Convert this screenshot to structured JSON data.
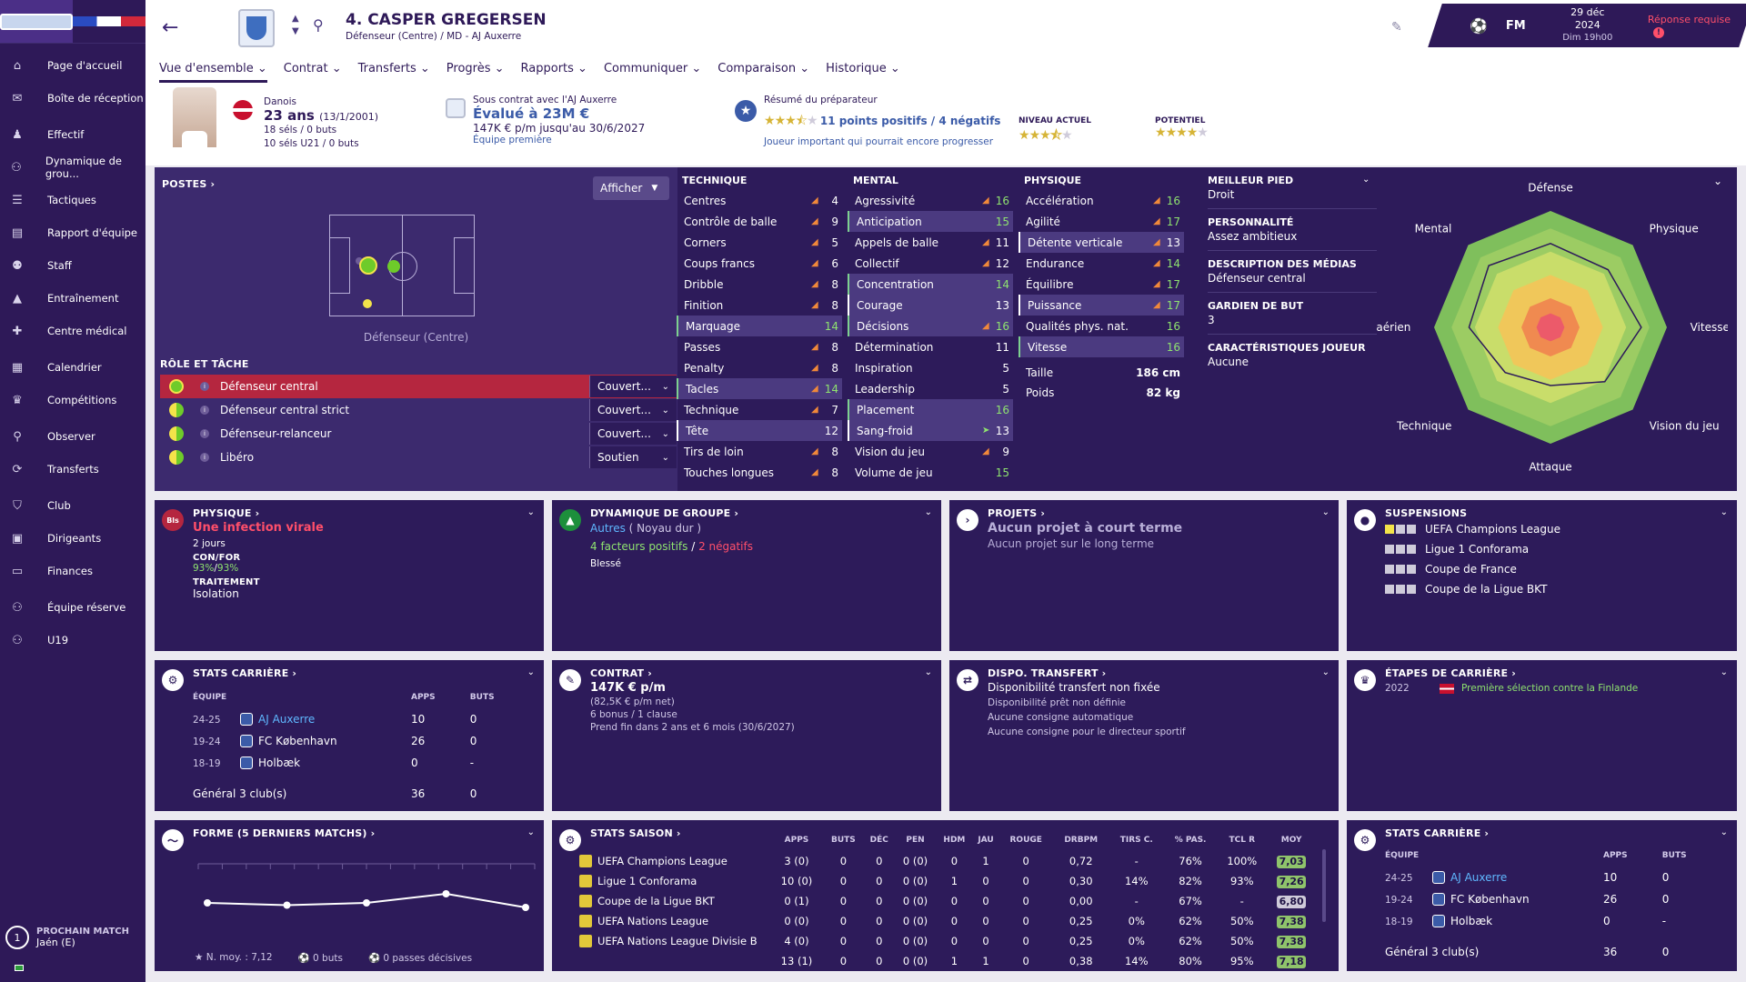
{
  "sidebar": {
    "items": [
      {
        "label": "Page d'accueil",
        "icon": "home-icon",
        "glyph": "⌂"
      },
      {
        "label": "Boîte de réception",
        "icon": "inbox-icon",
        "glyph": "✉"
      },
      {
        "label": "Effectif",
        "icon": "squad-icon",
        "glyph": "♟"
      },
      {
        "label": "Dynamique de grou...",
        "icon": "dynamics-icon",
        "glyph": "⚇"
      },
      {
        "label": "Tactiques",
        "icon": "tactics-icon",
        "glyph": "☰"
      },
      {
        "label": "Rapport d'équipe",
        "icon": "report-icon",
        "glyph": "▤"
      },
      {
        "label": "Staff",
        "icon": "staff-icon",
        "glyph": "⚉"
      },
      {
        "label": "Entraînement",
        "icon": "training-icon",
        "glyph": "▲"
      },
      {
        "label": "Centre médical",
        "icon": "medical-icon",
        "glyph": "✚"
      },
      {
        "label": "Calendrier",
        "icon": "calendar-icon",
        "glyph": "▦"
      },
      {
        "label": "Compétitions",
        "icon": "trophy-icon",
        "glyph": "♛"
      },
      {
        "label": "Observer",
        "icon": "scout-icon",
        "glyph": "⚲"
      },
      {
        "label": "Transferts",
        "icon": "transfers-icon",
        "glyph": "⟳"
      },
      {
        "label": "Club",
        "icon": "club-icon",
        "glyph": "⛉"
      },
      {
        "label": "Dirigeants",
        "icon": "board-icon",
        "glyph": "▣"
      },
      {
        "label": "Finances",
        "icon": "finances-icon",
        "glyph": "▭"
      },
      {
        "label": "Équipe réserve",
        "icon": "reserve-icon",
        "glyph": "⚇"
      },
      {
        "label": "U19",
        "icon": "u19-icon",
        "glyph": "⚇"
      }
    ],
    "next_match_label": "PROCHAIN MATCH",
    "next_match_value": "Jaén (E)",
    "next_match_days": "1"
  },
  "header": {
    "title": "4. CASPER GREGERSEN",
    "subtitle": "Défenseur (Centre) / MD - AJ Auxerre",
    "tabs": [
      "Vue d'ensemble",
      "Contrat",
      "Transferts",
      "Progrès",
      "Rapports",
      "Communiquer",
      "Comparaison",
      "Historique"
    ],
    "fm": "FM",
    "date": "29 déc 2024",
    "time": "Dim 19h00",
    "response": "Réponse requise"
  },
  "info": {
    "nationality": "Danois",
    "age": "23 ans",
    "birth": "(13/1/2001)",
    "caps": "18 séls / 0 buts",
    "caps_u21": "10 séls U21 / 0 buts",
    "contract_line": "Sous contrat avec l'AJ Auxerre",
    "value": "Évalué à 23M €",
    "wage": "147K € p/m jusqu'au 30/6/2027",
    "squad": "Équipe première",
    "coach_summary": "Résumé du préparateur",
    "summary_points": "11 points positifs / 4 négatifs",
    "summary_desc": "Joueur important qui pourrait encore progresser",
    "current_label": "NIVEAU ACTUEL",
    "potential_label": "POTENTIEL",
    "current_stars": 3.5,
    "potential_stars": 4,
    "summary_stars": 3.5
  },
  "positions": {
    "title": "POSTES",
    "display_button": "Afficher",
    "position_label": "Défenseur (Centre)",
    "roles_title": "RÔLE ET TÂCHE",
    "roles": [
      {
        "name": "Défenseur central",
        "duty": "Couvert...",
        "selected": true,
        "rating": "full"
      },
      {
        "name": "Défenseur central strict",
        "duty": "Couvert...",
        "selected": false,
        "rating": "half"
      },
      {
        "name": "Défenseur-relanceur",
        "duty": "Couvert...",
        "selected": false,
        "rating": "half"
      },
      {
        "name": "Libéro",
        "duty": "Soutien",
        "selected": false,
        "rating": "half"
      }
    ]
  },
  "attributes": {
    "technique_title": "TECHNIQUE",
    "mental_title": "MENTAL",
    "physique_title": "PHYSIQUE",
    "technique": [
      {
        "n": "Centres",
        "v": "4",
        "a": true
      },
      {
        "n": "Contrôle de balle",
        "v": "9",
        "a": true
      },
      {
        "n": "Corners",
        "v": "5",
        "a": true
      },
      {
        "n": "Coups francs",
        "v": "6",
        "a": true
      },
      {
        "n": "Dribble",
        "v": "8",
        "a": true
      },
      {
        "n": "Finition",
        "v": "8",
        "a": true
      },
      {
        "n": "Marquage",
        "v": "14",
        "a": false,
        "hl": "g"
      },
      {
        "n": "Passes",
        "v": "8",
        "a": true
      },
      {
        "n": "Penalty",
        "v": "8",
        "a": true
      },
      {
        "n": "Tacles",
        "v": "14",
        "a": true,
        "hl": "g"
      },
      {
        "n": "Technique",
        "v": "7",
        "a": true
      },
      {
        "n": "Tête",
        "v": "12",
        "a": false,
        "hl": "w"
      },
      {
        "n": "Tirs de loin",
        "v": "8",
        "a": true
      },
      {
        "n": "Touches longues",
        "v": "8",
        "a": true
      }
    ],
    "mental": [
      {
        "n": "Agressivité",
        "v": "16",
        "a": true
      },
      {
        "n": "Anticipation",
        "v": "15",
        "a": false,
        "hl": "g"
      },
      {
        "n": "Appels de balle",
        "v": "11",
        "a": true
      },
      {
        "n": "Collectif",
        "v": "12",
        "a": true
      },
      {
        "n": "Concentration",
        "v": "14",
        "a": false,
        "hl": "g"
      },
      {
        "n": "Courage",
        "v": "13",
        "a": false,
        "hl": "w"
      },
      {
        "n": "Décisions",
        "v": "16",
        "a": true,
        "hl": "g"
      },
      {
        "n": "Détermination",
        "v": "11",
        "a": false
      },
      {
        "n": "Inspiration",
        "v": "5",
        "a": false
      },
      {
        "n": "Leadership",
        "v": "5",
        "a": false
      },
      {
        "n": "Placement",
        "v": "16",
        "a": false,
        "hl": "g"
      },
      {
        "n": "Sang-froid",
        "v": "13",
        "a": true,
        "hl": "w",
        "up": true
      },
      {
        "n": "Vision du jeu",
        "v": "9",
        "a": true
      },
      {
        "n": "Volume de jeu",
        "v": "15",
        "a": false
      }
    ],
    "physique": [
      {
        "n": "Accélération",
        "v": "16",
        "a": true
      },
      {
        "n": "Agilité",
        "v": "17",
        "a": true
      },
      {
        "n": "Détente verticale",
        "v": "13",
        "a": true,
        "hl": "w"
      },
      {
        "n": "Endurance",
        "v": "14",
        "a": true
      },
      {
        "n": "Équilibre",
        "v": "17",
        "a": true
      },
      {
        "n": "Puissance",
        "v": "17",
        "a": true,
        "hl": "w"
      },
      {
        "n": "Qualités phys. nat.",
        "v": "16",
        "a": false
      },
      {
        "n": "Vitesse",
        "v": "16",
        "a": false,
        "hl": "g"
      }
    ],
    "height_label": "Taille",
    "height": "186 cm",
    "weight_label": "Poids",
    "weight": "82 kg"
  },
  "player_info": {
    "foot_title": "MEILLEUR PIED",
    "foot": "Droit",
    "personality_title": "PERSONNALITÉ",
    "personality": "Assez ambitieux",
    "media_title": "DESCRIPTION DES MÉDIAS",
    "media": "Défenseur central",
    "gk_title": "GARDIEN DE BUT",
    "gk": "3",
    "traits_title": "CARACTÉRISTIQUES JOUEUR",
    "traits": "Aucune"
  },
  "radar": {
    "labels": [
      "Défense",
      "Physique",
      "Vitesse",
      "Vision du jeu",
      "Attaque",
      "Technique",
      "Jeu aérien",
      "Mental"
    ],
    "values": [
      0.72,
      0.7,
      0.78,
      0.66,
      0.5,
      0.55,
      0.7,
      0.75
    ],
    "max": 1
  },
  "cards": {
    "physique": {
      "title": "PHYSIQUE",
      "status": "Une infection virale",
      "days": "2 jours",
      "conf_label": "CON/FOR",
      "conf": "93%",
      "form": "93%",
      "treat_label": "TRAITEMENT",
      "treat": "Isolation",
      "icon_text": "Bls"
    },
    "dynamics": {
      "title": "DYNAMIQUE DE GROUPE",
      "group": "Autres",
      "group_note": "( Noyau dur )",
      "pos": "4 facteurs positifs",
      "neg": "2 négatifs",
      "note": "Blessé"
    },
    "projects": {
      "title": "PROJETS",
      "short": "Aucun projet à court terme",
      "long": "Aucun projet sur le long terme"
    },
    "suspensions": {
      "title": "SUSPENSIONS",
      "items": [
        "UEFA Champions League",
        "Ligue 1 Conforama",
        "Coupe de France",
        "Coupe de la Ligue BKT"
      ]
    },
    "career": {
      "title": "STATS CARRIÈRE",
      "h_team": "ÉQUIPE",
      "h_apps": "APPS",
      "h_goals": "BUTS",
      "rows": [
        {
          "y": "24-25",
          "club": "AJ Auxerre",
          "apps": "10",
          "goals": "0"
        },
        {
          "y": "19-24",
          "club": "FC København",
          "apps": "26",
          "goals": "0"
        },
        {
          "y": "18-19",
          "club": "Holbæk",
          "apps": "0",
          "goals": "-"
        }
      ],
      "total_label": "Général 3 club(s)",
      "total_apps": "36",
      "total_goals": "0"
    },
    "contract": {
      "title": "CONTRAT",
      "wage": "147K € p/m",
      "net": "(82,5K € p/m net)",
      "bonus": "6 bonus / 1 clause",
      "end": "Prend fin dans 2 ans et 6 mois (30/6/2027)"
    },
    "transfer": {
      "title": "DISPO. TRANSFERT",
      "status": "Disponibilité transfert non fixée",
      "l1": "Disponibilité prêt non définie",
      "l2": "Aucune consigne automatique",
      "l3": "Aucune consigne pour le directeur sportif"
    },
    "milestones": {
      "title": "ÉTAPES DE CARRIÈRE",
      "year": "2022",
      "text": "Première sélection contre la Finlande"
    },
    "form": {
      "title": "FORME (5 DERNIERS MATCHS)",
      "ratings": [
        7.1,
        7.05,
        7.1,
        7.3,
        7.0
      ],
      "avg": "N. moy. : 7,12",
      "goals": "0 buts",
      "assists": "0 passes décisives"
    },
    "season": {
      "title": "STATS SAISON",
      "headers": [
        "APPS",
        "BUTS",
        "DÉC",
        "PEN",
        "HDM",
        "JAU",
        "ROUGE",
        "DRBPM",
        "TIRS C.",
        "% PAS.",
        "TCL R",
        "MOY"
      ],
      "rows": [
        {
          "comp": "UEFA Champions League",
          "c": [
            "3 (0)",
            "0",
            "0",
            "0 (0)",
            "0",
            "1",
            "0",
            "0,72",
            "-",
            "76%",
            "100%",
            "7,03"
          ],
          "gray": false
        },
        {
          "comp": "Ligue 1 Conforama",
          "c": [
            "10 (0)",
            "0",
            "0",
            "0 (0)",
            "1",
            "0",
            "0",
            "0,30",
            "14%",
            "82%",
            "93%",
            "7,26"
          ],
          "gray": false
        },
        {
          "comp": "Coupe de la Ligue BKT",
          "c": [
            "0 (1)",
            "0",
            "0",
            "0 (0)",
            "0",
            "0",
            "0",
            "0,00",
            "-",
            "67%",
            "-",
            "6,80"
          ],
          "gray": true
        },
        {
          "comp": "UEFA Nations League",
          "c": [
            "0 (0)",
            "0",
            "0",
            "0 (0)",
            "0",
            "0",
            "0",
            "0,25",
            "0%",
            "62%",
            "50%",
            "7,38"
          ],
          "gray": false
        },
        {
          "comp": "UEFA Nations League Divisie B",
          "c": [
            "4 (0)",
            "0",
            "0",
            "0 (0)",
            "0",
            "0",
            "0",
            "0,25",
            "0%",
            "62%",
            "50%",
            "7,38"
          ],
          "gray": false
        },
        {
          "comp": "",
          "c": [
            "13 (1)",
            "0",
            "0",
            "0 (0)",
            "1",
            "1",
            "0",
            "0,38",
            "14%",
            "80%",
            "95%",
            "7,18"
          ],
          "gray": false
        }
      ]
    }
  }
}
